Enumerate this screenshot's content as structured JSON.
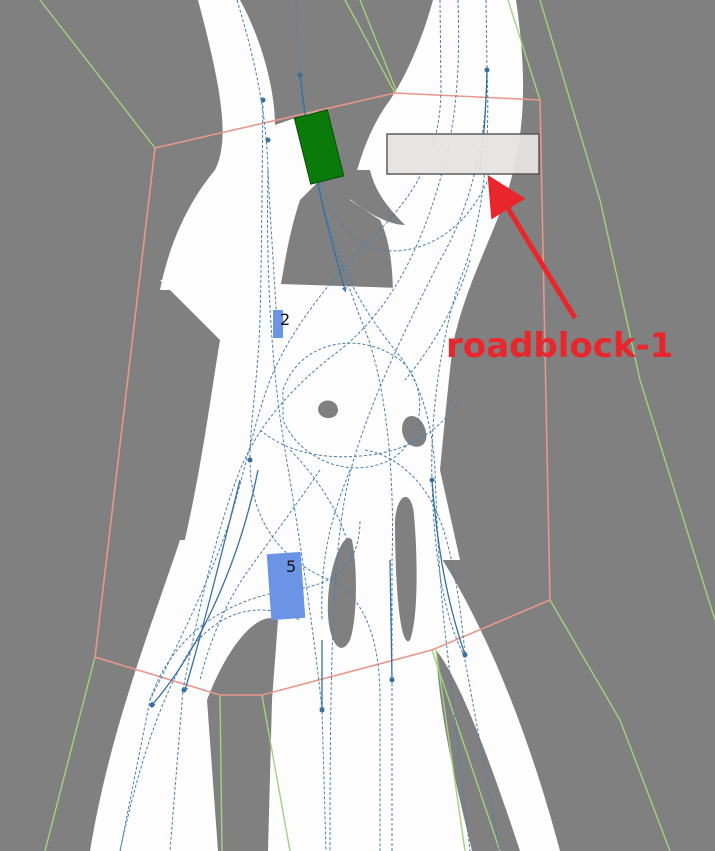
{
  "map": {
    "background_color": "#808080",
    "road_color": "#fdfdfd",
    "lane_line_color": "#4a7fae",
    "intersection_boundary_color": "#e8978a",
    "road_edge_color": "#a3d27f"
  },
  "vehicles": [
    {
      "id": "ego",
      "label": "",
      "color": "#0a7a0a"
    },
    {
      "id": "agent-2",
      "label": "2",
      "color": "#6b93e6"
    },
    {
      "id": "agent-5",
      "label": "5",
      "color": "#6b93e6"
    }
  ],
  "roadblock": {
    "fill": "#e6e3e3",
    "stroke": "#555555"
  },
  "annotation": {
    "label": "roadblock-1",
    "color": "#e8262b"
  }
}
